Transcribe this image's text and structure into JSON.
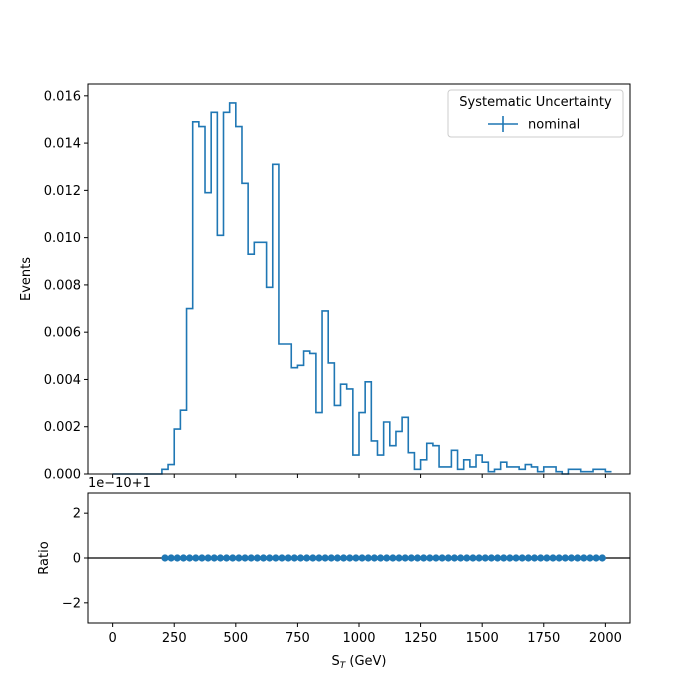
{
  "chart_data": [
    {
      "type": "step",
      "xlabel_main": "S",
      "xlabel_sub": "T",
      "xlabel_unit": " (GeV)",
      "ylabel": "Events",
      "xlim": [
        -100,
        2100
      ],
      "ylim": [
        0,
        0.0165
      ],
      "xticks": [
        0,
        250,
        500,
        750,
        1000,
        1250,
        1500,
        1750,
        2000
      ],
      "yticks": [
        0.0,
        0.002,
        0.004,
        0.006,
        0.008,
        0.01,
        0.012,
        0.014,
        0.016
      ],
      "ytick_labels": [
        "0.000",
        "0.002",
        "0.004",
        "0.006",
        "0.008",
        "0.010",
        "0.012",
        "0.014",
        "0.016"
      ],
      "bin_width": 25,
      "bin_start": 0,
      "values": [
        0,
        0,
        0,
        0,
        0,
        0,
        0,
        0,
        0.0002,
        0.0004,
        0.0019,
        0.0027,
        0.007,
        0.0149,
        0.0147,
        0.0119,
        0.0153,
        0.0101,
        0.0153,
        0.0157,
        0.0147,
        0.0123,
        0.0093,
        0.0098,
        0.0098,
        0.0079,
        0.0131,
        0.0055,
        0.0055,
        0.0045,
        0.0046,
        0.0052,
        0.0051,
        0.0026,
        0.0069,
        0.0047,
        0.0029,
        0.0038,
        0.0036,
        0.0008,
        0.0026,
        0.0039,
        0.0014,
        0.0008,
        0.0022,
        0.0012,
        0.0018,
        0.0024,
        0.0009,
        0.0002,
        0.0006,
        0.0013,
        0.0012,
        0.0003,
        0.0003,
        0.001,
        0.0002,
        0.0006,
        0.0003,
        0.0008,
        0.0005,
        0.0001,
        0.0002,
        0.0005,
        0.0003,
        0.0003,
        0.0002,
        0.0004,
        0.0003,
        0.0001,
        0.0003,
        0.0003,
        0.0001,
        0.0,
        0.0002,
        0.0002,
        0.0001,
        0.0001,
        0.0002,
        0.0002,
        0.0001
      ],
      "color": "#1f77b4",
      "legend": {
        "title": "Systematic Uncertainty",
        "entries": [
          "nominal"
        ],
        "placement": "upper right"
      }
    },
    {
      "type": "scatter",
      "xlabel_main": "S",
      "xlabel_sub": "T",
      "xlabel_unit": " (GeV)",
      "ylabel": "Ratio",
      "offset_text": "1e−10+1",
      "xlim": [
        -100,
        2100
      ],
      "ylim": [
        -2.9,
        2.9
      ],
      "xticks": [
        0,
        250,
        500,
        750,
        1000,
        1250,
        1500,
        1750,
        2000
      ],
      "xtick_labels": [
        "0",
        "250",
        "500",
        "750",
        "1000",
        "1250",
        "1500",
        "1750",
        "2000"
      ],
      "yticks": [
        -2,
        0,
        2
      ],
      "ytick_labels": [
        "−2",
        "0",
        "2"
      ],
      "reference_line": 0,
      "points_x_start": 212.5,
      "points_x_end": 1987.5,
      "points_x_step": 25,
      "points_y": 0,
      "color": "#1f77b4"
    }
  ]
}
